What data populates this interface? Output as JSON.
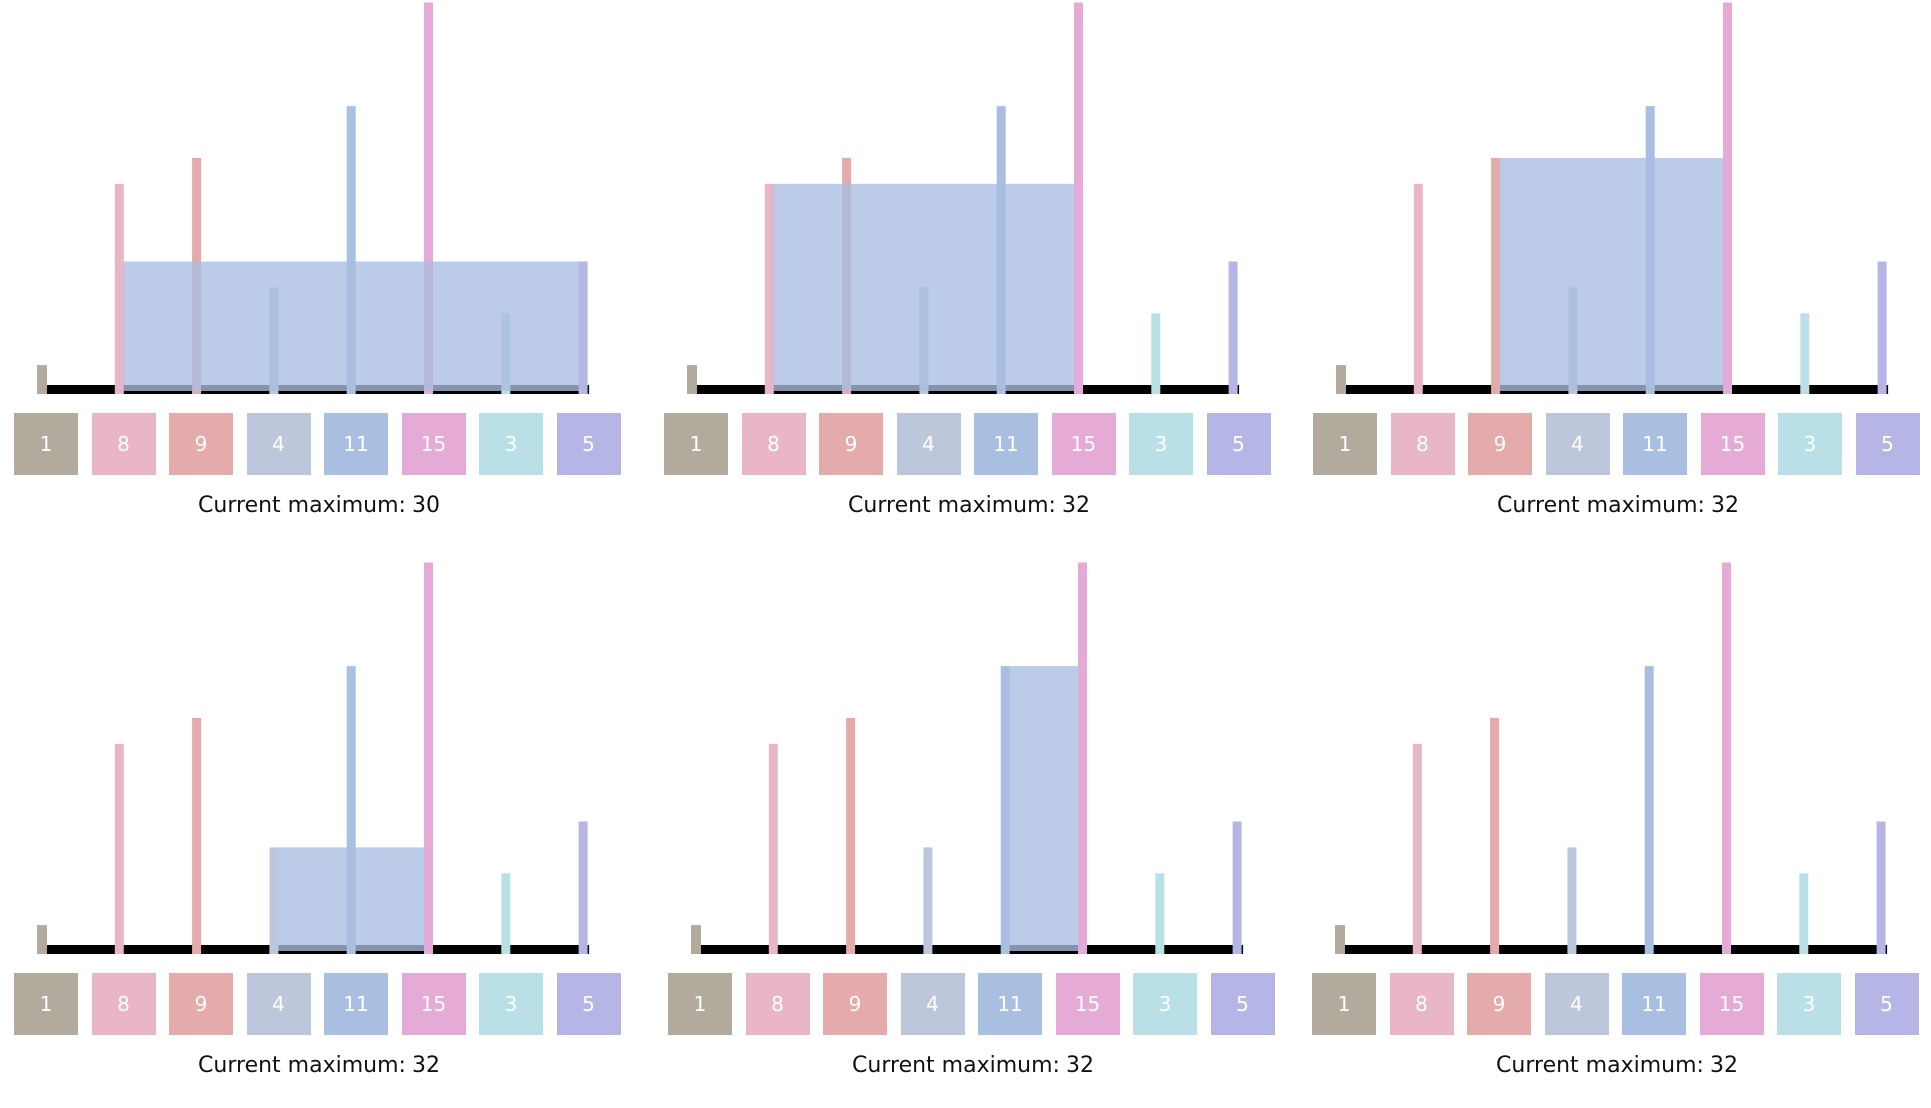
{
  "colors": [
    "#b2aa9c",
    "#e8b6c6",
    "#e5aaaa",
    "#bcc7db",
    "#a9bfe2",
    "#e6aad6",
    "#b8e0e6",
    "#b6b6e6"
  ],
  "area_color": "#a9bde0",
  "baseline_color": "#000000",
  "heights": [
    1,
    8,
    9,
    4,
    11,
    15,
    3,
    5
  ],
  "caption_label": "Current maximum:",
  "panels": [
    {
      "left": 1,
      "right": 7,
      "max": "30"
    },
    {
      "left": 1,
      "right": 5,
      "max": "32"
    },
    {
      "left": 2,
      "right": 5,
      "max": "32"
    },
    {
      "left": 3,
      "right": 5,
      "max": "32"
    },
    {
      "left": 4,
      "right": 5,
      "max": "32"
    },
    {
      "left": null,
      "right": null,
      "max": "32"
    }
  ]
}
